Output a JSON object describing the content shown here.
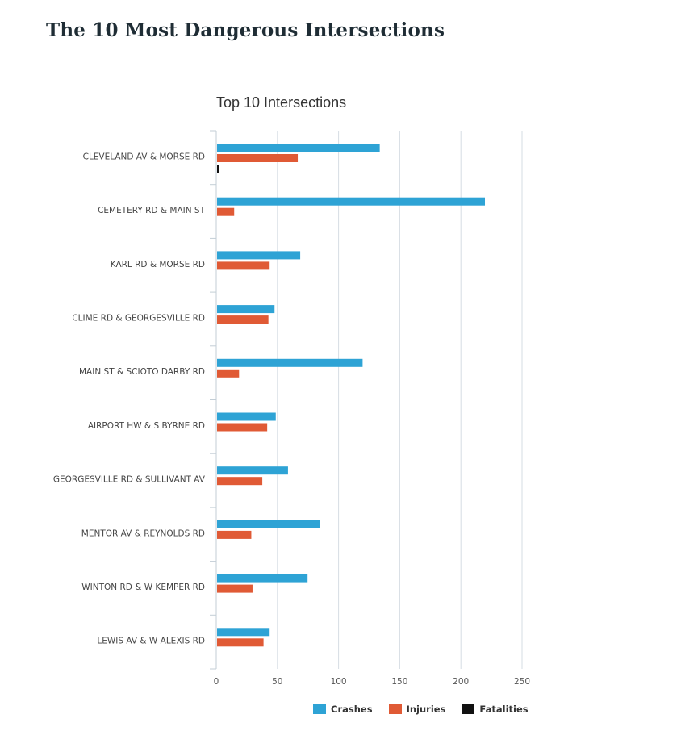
{
  "page_title": "The 10 Most Dangerous Intersections",
  "chart_data": {
    "type": "bar",
    "orientation": "horizontal",
    "title": "Top 10 Intersections",
    "categories": [
      "CLEVELAND AV & MORSE RD",
      "CEMETERY RD & MAIN ST",
      "KARL RD & MORSE RD",
      "CLIME RD & GEORGESVILLE RD",
      "MAIN ST & SCIOTO DARBY RD",
      "AIRPORT HW & S BYRNE RD",
      "GEORGESVILLE RD & SULLIVANT AV",
      "MENTOR AV & REYNOLDS RD",
      "WINTON RD & W KEMPER RD",
      "LEWIS AV & W ALEXIS RD"
    ],
    "series": [
      {
        "name": "Crashes",
        "color": "#2ea3d5",
        "values": [
          133,
          219,
          68,
          47,
          119,
          48,
          58,
          84,
          74,
          43
        ]
      },
      {
        "name": "Injuries",
        "color": "#e05a35",
        "values": [
          66,
          14,
          43,
          42,
          18,
          41,
          37,
          28,
          29,
          38
        ]
      },
      {
        "name": "Fatalities",
        "color": "#111111",
        "values": [
          1,
          0,
          0,
          0,
          0,
          0,
          0,
          0,
          0,
          0
        ]
      }
    ],
    "xlim": [
      0,
      250
    ],
    "xticks": [
      "0",
      "50",
      "100",
      "150",
      "200",
      "250"
    ],
    "grid": true,
    "legend_position": "bottom"
  }
}
